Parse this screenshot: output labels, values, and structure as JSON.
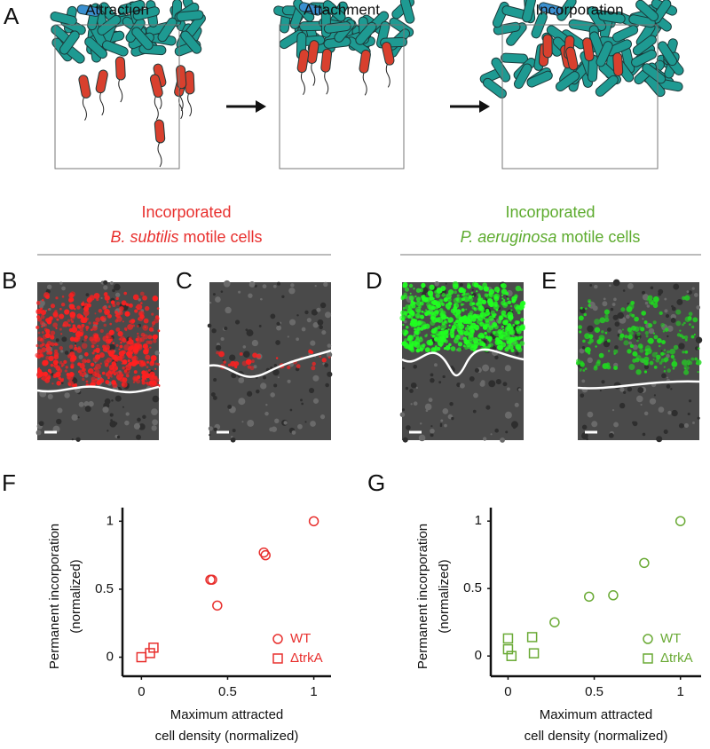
{
  "panels": {
    "A": {
      "label": "A",
      "steps": [
        "Attraction",
        "Attachment",
        "Incorporation"
      ]
    },
    "B": "B",
    "C": "C",
    "D": "D",
    "E": "E"
  },
  "headings": [
    {
      "line1": "Incorporated",
      "species": "B. subtilis",
      "rest": "motile cells"
    },
    {
      "line1": "Incorporated",
      "species": "P. aeruginosa",
      "rest": "motile cells"
    }
  ],
  "chart_data": [
    {
      "type": "scatter",
      "panel_label": "F",
      "ylabel": [
        "Permanent incorporation",
        "(normalized)"
      ],
      "xlabel": [
        "Maximum attracted",
        "cell density (normalized)"
      ],
      "xlim": [
        -0.11,
        1.1
      ],
      "ylim": [
        -0.14,
        1.1
      ],
      "xticks": [
        0,
        0.5,
        1
      ],
      "yticks": [
        0,
        0.5,
        1
      ],
      "legend": "lower right",
      "series": [
        {
          "name": "WT",
          "marker": "circle",
          "color": "#e8302e",
          "x": [
            0.4,
            0.41,
            0.44,
            0.71,
            0.72,
            1.0
          ],
          "values": [
            0.57,
            0.57,
            0.38,
            0.77,
            0.75,
            1.0
          ]
        },
        {
          "name": "ΔtrkA",
          "marker": "square",
          "color": "#e8302e",
          "x": [
            0,
            0.05,
            0.07
          ],
          "values": [
            0,
            0.03,
            0.07
          ]
        }
      ]
    },
    {
      "type": "scatter",
      "panel_label": "G",
      "ylabel": [
        "Permanent incorporation",
        "(normalized)"
      ],
      "xlabel": [
        "Maximum attracted",
        "cell density (normalized)"
      ],
      "xlim": [
        -0.1,
        1.12
      ],
      "ylim": [
        -0.15,
        1.1
      ],
      "xticks": [
        0,
        0.5,
        1
      ],
      "yticks": [
        0,
        0.5,
        1
      ],
      "legend": "lower right",
      "series": [
        {
          "name": "WT",
          "marker": "circle",
          "color": "#6aaa35",
          "x": [
            0.27,
            0.47,
            0.61,
            0.79,
            1.0
          ],
          "values": [
            0.25,
            0.44,
            0.45,
            0.69,
            1.0
          ]
        },
        {
          "name": "ΔtrkA",
          "marker": "square",
          "color": "#6aaa35",
          "x": [
            0,
            0,
            0.02,
            0.14,
            0.15
          ],
          "values": [
            0.13,
            0.05,
            0,
            0.14,
            0.02
          ]
        }
      ]
    }
  ]
}
